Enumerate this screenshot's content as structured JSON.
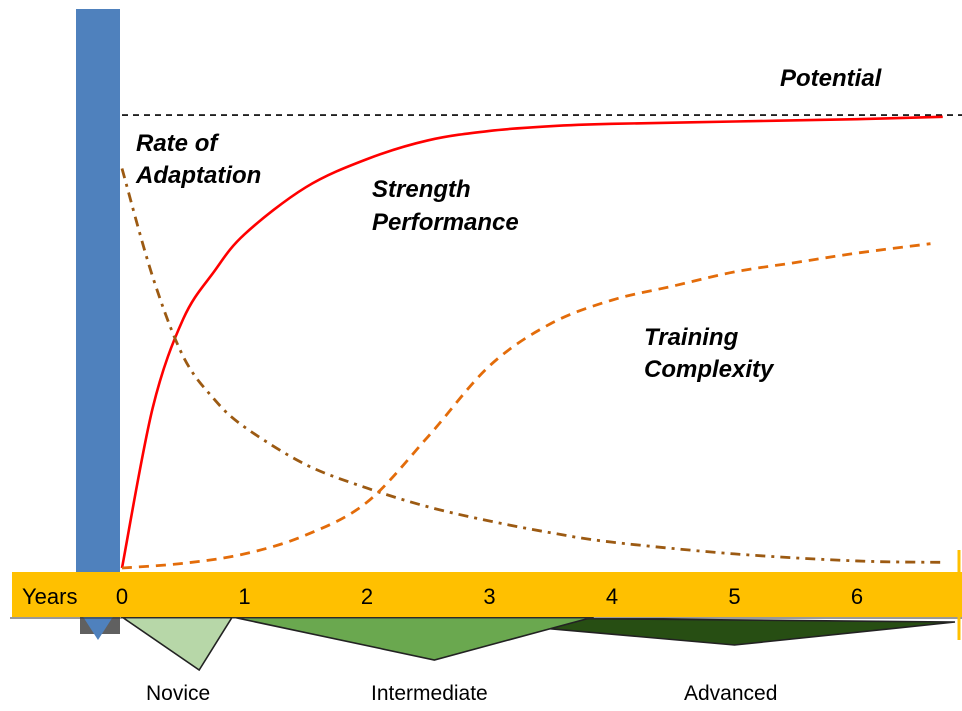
{
  "chart_data": {
    "type": "line",
    "title": "",
    "xlabel": "Years",
    "ylabel": "",
    "x_ticks": [
      "0",
      "1",
      "2",
      "3",
      "4",
      "5",
      "6"
    ],
    "xlim": [
      0,
      6.7
    ],
    "ylim": [
      0,
      1
    ],
    "grid": false,
    "legend": "none (inline labels)",
    "potential_label": "Potential",
    "potential_level": 0.97,
    "series": [
      {
        "name": "Strength Performance",
        "label_lines": [
          "Strength",
          "Performance"
        ],
        "style": "solid",
        "color": "#ff0000",
        "x": [
          0,
          0.25,
          0.5,
          0.75,
          1.0,
          1.5,
          2.0,
          2.5,
          3.0,
          3.5,
          4.0,
          5.0,
          6.0,
          6.7
        ],
        "values": [
          0,
          0.34,
          0.53,
          0.63,
          0.71,
          0.81,
          0.87,
          0.91,
          0.93,
          0.94,
          0.945,
          0.95,
          0.955,
          0.96
        ]
      },
      {
        "name": "Rate of Adaptation",
        "label_lines": [
          "Rate of",
          "Adaptation"
        ],
        "style": "dash-dot",
        "color": "#9c5a12",
        "x": [
          0,
          0.25,
          0.5,
          0.75,
          1.0,
          1.5,
          2.0,
          2.5,
          3.0,
          3.5,
          4.0,
          5.0,
          6.0,
          6.7
        ],
        "values": [
          0.85,
          0.62,
          0.45,
          0.36,
          0.3,
          0.22,
          0.17,
          0.13,
          0.1,
          0.075,
          0.055,
          0.03,
          0.015,
          0.012
        ]
      },
      {
        "name": "Training Complexity",
        "label_lines": [
          "Training",
          "Complexity"
        ],
        "style": "dashed",
        "color": "#e36c0a",
        "x": [
          0,
          0.5,
          1.0,
          1.5,
          2.0,
          2.5,
          3.0,
          3.5,
          4.0,
          4.5,
          5.0,
          5.5,
          6.0,
          6.6
        ],
        "values": [
          0,
          0.01,
          0.03,
          0.07,
          0.14,
          0.28,
          0.43,
          0.52,
          0.57,
          0.6,
          0.63,
          0.65,
          0.67,
          0.69
        ]
      }
    ],
    "stages": [
      {
        "name": "Novice",
        "start": 0,
        "peak": 0.63,
        "end": 0.9,
        "color": "#b7d7a8"
      },
      {
        "name": "Intermediate",
        "start": 0.9,
        "peak": 2.55,
        "end": 3.85,
        "color": "#6aa84f"
      },
      {
        "name": "Advanced",
        "start": 2.4,
        "peak": 5.0,
        "end": 6.8,
        "color": "#274e13"
      }
    ]
  },
  "colors": {
    "axis_bar": "#ffc000",
    "y_bar": "#4f81bd",
    "potential_line": "#000000"
  }
}
